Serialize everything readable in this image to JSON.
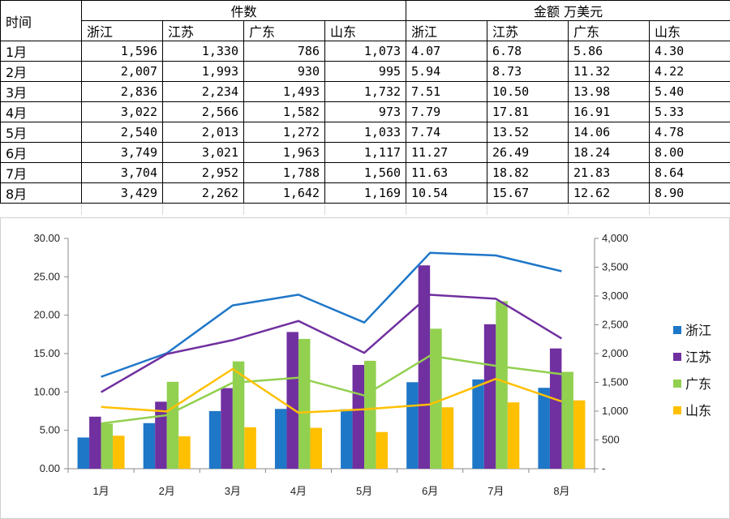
{
  "table": {
    "corner": "时间",
    "group_count": "件数",
    "group_amount": "金额  万美元",
    "provinces": [
      "浙江",
      "江苏",
      "广东",
      "山东"
    ],
    "rows": [
      {
        "month": "1月",
        "count": [
          "1,596",
          "1,330",
          "786",
          "1,073"
        ],
        "amount": [
          "4.07",
          "6.78",
          "5.86",
          "4.30"
        ]
      },
      {
        "month": "2月",
        "count": [
          "2,007",
          "1,993",
          "930",
          "995"
        ],
        "amount": [
          "5.94",
          "8.73",
          "11.32",
          "4.22"
        ]
      },
      {
        "month": "3月",
        "count": [
          "2,836",
          "2,234",
          "1,493",
          "1,732"
        ],
        "amount": [
          "7.51",
          "10.50",
          "13.98",
          "5.40"
        ]
      },
      {
        "month": "4月",
        "count": [
          "3,022",
          "2,566",
          "1,582",
          "973"
        ],
        "amount": [
          "7.79",
          "17.81",
          "16.91",
          "5.33"
        ]
      },
      {
        "month": "5月",
        "count": [
          "2,540",
          "2,013",
          "1,272",
          "1,033"
        ],
        "amount": [
          "7.74",
          "13.52",
          "14.06",
          "4.78"
        ]
      },
      {
        "month": "6月",
        "count": [
          "3,749",
          "3,021",
          "1,963",
          "1,117"
        ],
        "amount": [
          "11.27",
          "26.49",
          "18.24",
          "8.00"
        ]
      },
      {
        "month": "7月",
        "count": [
          "3,704",
          "2,952",
          "1,788",
          "1,560"
        ],
        "amount": [
          "11.63",
          "18.82",
          "21.83",
          "8.64"
        ]
      },
      {
        "month": "8月",
        "count": [
          "3,429",
          "2,262",
          "1,642",
          "1,169"
        ],
        "amount": [
          "10.54",
          "15.67",
          "12.62",
          "8.90"
        ]
      }
    ]
  },
  "chart_data": {
    "type": "bar",
    "categories": [
      "1月",
      "2月",
      "3月",
      "4月",
      "5月",
      "6月",
      "7月",
      "8月"
    ],
    "bar_series": [
      {
        "name": "浙江",
        "color": "#1f77c8",
        "values": [
          4.07,
          5.94,
          7.51,
          7.79,
          7.74,
          11.27,
          11.63,
          10.54
        ]
      },
      {
        "name": "江苏",
        "color": "#7030a0",
        "values": [
          6.78,
          8.73,
          10.5,
          17.81,
          13.52,
          26.49,
          18.82,
          15.67
        ]
      },
      {
        "name": "广东",
        "color": "#92d050",
        "values": [
          5.86,
          11.32,
          13.98,
          16.91,
          14.06,
          18.24,
          21.83,
          12.62
        ]
      },
      {
        "name": "山东",
        "color": "#ffc000",
        "values": [
          4.3,
          4.22,
          5.4,
          5.33,
          4.78,
          8.0,
          8.64,
          8.9
        ]
      }
    ],
    "line_series": [
      {
        "name": "浙江",
        "color": "#1f77c8",
        "values": [
          1596,
          2007,
          2836,
          3022,
          2540,
          3749,
          3704,
          3429
        ]
      },
      {
        "name": "江苏",
        "color": "#7030a0",
        "values": [
          1330,
          1993,
          2234,
          2566,
          2013,
          3021,
          2952,
          2262
        ]
      },
      {
        "name": "广东",
        "color": "#92d050",
        "values": [
          786,
          930,
          1493,
          1582,
          1272,
          1963,
          1788,
          1642
        ]
      },
      {
        "name": "山东",
        "color": "#ffc000",
        "values": [
          1073,
          995,
          1732,
          973,
          1033,
          1117,
          1560,
          1169
        ]
      }
    ],
    "y_left": {
      "min": 0,
      "max": 30,
      "ticks": [
        "0.00",
        "5.00",
        "10.00",
        "15.00",
        "20.00",
        "25.00",
        "30.00"
      ]
    },
    "y_right": {
      "min": 0,
      "max": 4000,
      "ticks": [
        "-",
        "500",
        "1,000",
        "1,500",
        "2,000",
        "2,500",
        "3,000",
        "3,500",
        "4,000"
      ]
    },
    "legend": {
      "position": "right",
      "items": [
        "浙江",
        "江苏",
        "广东",
        "山东"
      ]
    },
    "grid": false
  }
}
